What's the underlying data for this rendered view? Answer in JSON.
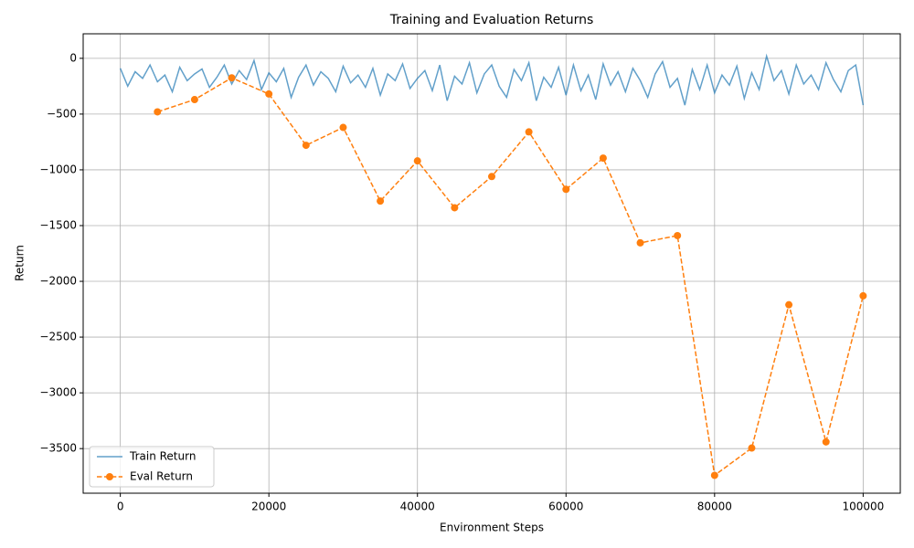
{
  "chart_data": {
    "type": "line",
    "title": "Training and Evaluation Returns",
    "x_label": "Environment Steps",
    "y_label": "Return",
    "xlim": [
      -5000,
      105000
    ],
    "ylim": [
      -3900,
      220
    ],
    "xticks": [
      0,
      20000,
      40000,
      60000,
      80000,
      100000
    ],
    "yticks": [
      0,
      {
        "value": -500,
        "label": "−500"
      },
      {
        "value": -1000,
        "label": "−1000"
      },
      {
        "value": -1500,
        "label": "−1500"
      },
      {
        "value": -2000,
        "label": "−2000"
      },
      {
        "value": -2500,
        "label": "−2500"
      },
      {
        "value": -3000,
        "label": "−3000"
      },
      {
        "value": -3500,
        "label": "−3500"
      }
    ],
    "grid": true,
    "legend": "lower left",
    "series": [
      {
        "name": "Train Return",
        "color": "#1f77b4",
        "style": "solid",
        "x": [
          0,
          1000,
          2000,
          3000,
          4000,
          5000,
          6000,
          7000,
          8000,
          9000,
          10000,
          11000,
          12000,
          13000,
          14000,
          15000,
          16000,
          17000,
          18000,
          19000,
          20000,
          21000,
          22000,
          23000,
          24000,
          25000,
          26000,
          27000,
          28000,
          29000,
          30000,
          31000,
          32000,
          33000,
          34000,
          35000,
          36000,
          37000,
          38000,
          39000,
          40000,
          41000,
          42000,
          43000,
          44000,
          45000,
          46000,
          47000,
          48000,
          49000,
          50000,
          51000,
          52000,
          53000,
          54000,
          55000,
          56000,
          57000,
          58000,
          59000,
          60000,
          61000,
          62000,
          63000,
          64000,
          65000,
          66000,
          67000,
          68000,
          69000,
          70000,
          71000,
          72000,
          73000,
          74000,
          75000,
          76000,
          77000,
          78000,
          79000,
          80000,
          81000,
          82000,
          83000,
          84000,
          85000,
          86000,
          87000,
          88000,
          89000,
          90000,
          91000,
          92000,
          93000,
          94000,
          95000,
          96000,
          97000,
          98000,
          99000,
          100000
        ],
        "values": [
          -90,
          -250,
          -120,
          -180,
          -60,
          -210,
          -150,
          -300,
          -80,
          -200,
          -140,
          -95,
          -260,
          -170,
          -60,
          -230,
          -110,
          -190,
          -20,
          -280,
          -130,
          -210,
          -90,
          -350,
          -170,
          -60,
          -240,
          -120,
          -180,
          -300,
          -70,
          -220,
          -150,
          -260,
          -90,
          -330,
          -140,
          -200,
          -50,
          -270,
          -180,
          -110,
          -290,
          -60,
          -380,
          -160,
          -230,
          -40,
          -310,
          -140,
          -60,
          -250,
          -350,
          -100,
          -200,
          -40,
          -380,
          -170,
          -260,
          -80,
          -330,
          -60,
          -290,
          -150,
          -370,
          -50,
          -240,
          -120,
          -300,
          -90,
          -200,
          -350,
          -140,
          -30,
          -260,
          -180,
          -420,
          -100,
          -280,
          -60,
          -310,
          -150,
          -240,
          -70,
          -360,
          -130,
          -280,
          20,
          -200,
          -110,
          -320,
          -60,
          -230,
          -150,
          -280,
          -40,
          -190,
          -300,
          -110,
          -60,
          -420
        ]
      },
      {
        "name": "Eval Return",
        "color": "#ff7f0e",
        "style": "dashed",
        "marker": "circle",
        "x": [
          5000,
          10000,
          15000,
          20000,
          25000,
          30000,
          35000,
          40000,
          45000,
          50000,
          55000,
          60000,
          65000,
          70000,
          75000,
          80000,
          85000,
          90000,
          95000,
          100000
        ],
        "values": [
          -480,
          -370,
          -175,
          -320,
          -780,
          -620,
          -1280,
          -920,
          -1340,
          -1060,
          -660,
          -1175,
          -895,
          -1655,
          -1590,
          -3740,
          -3495,
          -2210,
          -3440,
          -2130
        ]
      }
    ]
  }
}
